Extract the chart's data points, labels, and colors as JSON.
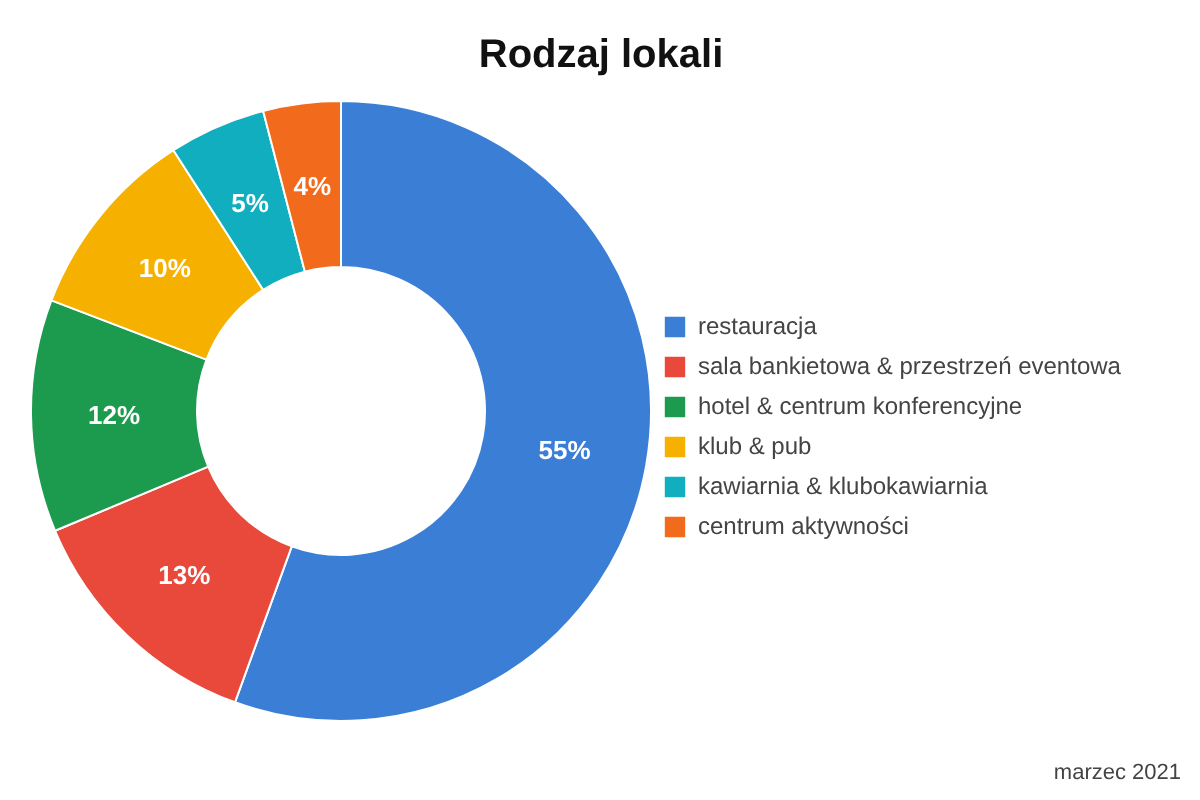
{
  "chart_data": {
    "type": "donut",
    "title": "Rodzaj lokali",
    "categories": [
      "restauracja",
      "sala bankietowa & przestrzeń eventowa",
      "hotel & centrum konferencyjne",
      "klub & pub",
      "kawiarnia & klubokawiarnia",
      "centrum aktywności"
    ],
    "values": [
      55,
      13,
      12,
      10,
      5,
      4
    ],
    "colors": [
      "#3a7fd5",
      "#e8493a",
      "#1c9b4e",
      "#f6b100",
      "#11aebf",
      "#f26a1b"
    ],
    "value_labels": [
      "55%",
      "13%",
      "12%",
      "10%",
      "5%",
      "4%"
    ],
    "legend": "right",
    "annotations": [
      "marzec 2021"
    ]
  }
}
